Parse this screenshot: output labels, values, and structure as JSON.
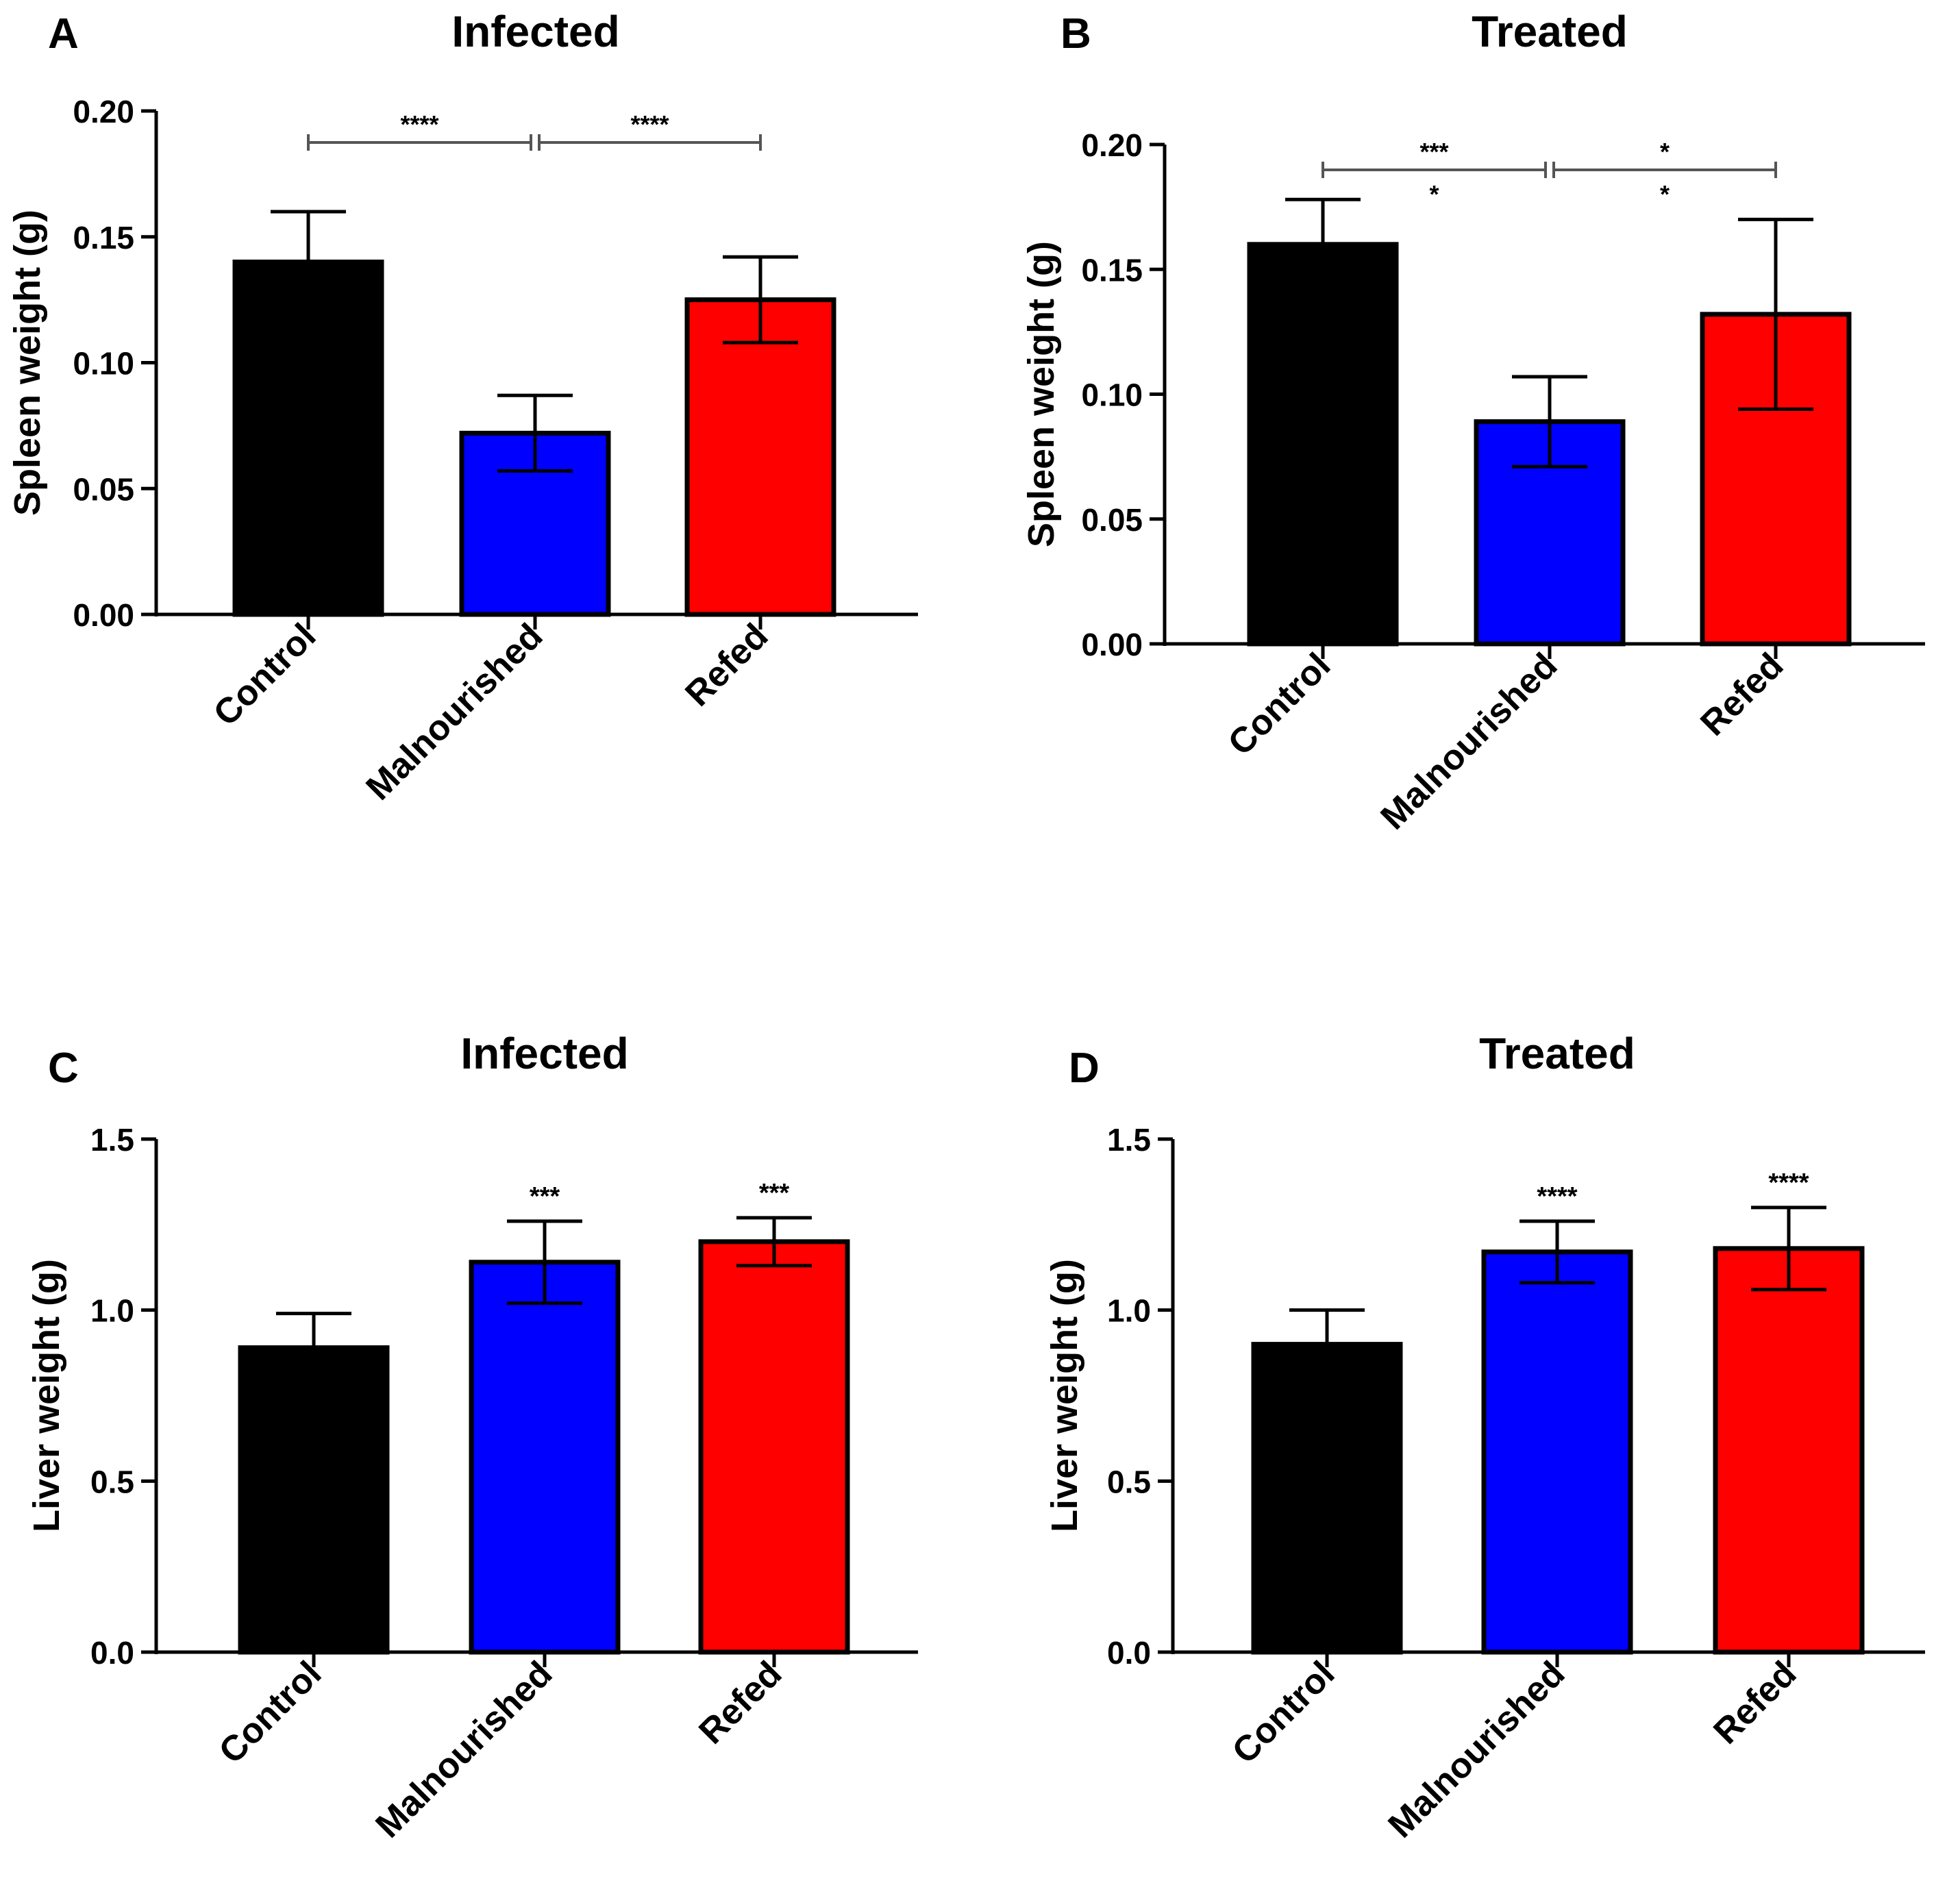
{
  "figure": {
    "background": "#ffffff",
    "axis_color": "#000000",
    "bracket_color": "#555555"
  },
  "chart_data": [
    {
      "panel": "A",
      "type": "bar",
      "title": "Infected",
      "ylabel": "Spleen weight (g)",
      "xlabel": "",
      "categories": [
        "Control",
        "Malnourished",
        "Refed"
      ],
      "values": [
        0.14,
        0.072,
        0.125
      ],
      "errors": [
        0.02,
        0.015,
        0.017
      ],
      "colors": [
        "#000000",
        "#0000ff",
        "#ff0000"
      ],
      "ylim": [
        0,
        0.2
      ],
      "yticks": [
        0.0,
        0.05,
        0.1,
        0.15,
        0.2
      ],
      "ytick_labels": [
        "0.00",
        "0.05",
        "0.10",
        "0.15",
        "0.20"
      ],
      "brackets": [
        {
          "from": 0,
          "to": 1,
          "labels": [
            "****"
          ]
        },
        {
          "from": 1,
          "to": 2,
          "labels": [
            "****"
          ]
        }
      ],
      "bar_annotations": [
        "",
        "",
        ""
      ]
    },
    {
      "panel": "B",
      "type": "bar",
      "title": "Treated",
      "ylabel": "Spleen weight (g)",
      "xlabel": "",
      "categories": [
        "Control",
        "Malnourished",
        "Refed"
      ],
      "values": [
        0.16,
        0.089,
        0.132
      ],
      "errors": [
        0.018,
        0.018,
        0.038
      ],
      "colors": [
        "#000000",
        "#0000ff",
        "#ff0000"
      ],
      "ylim": [
        0,
        0.2
      ],
      "yticks": [
        0.0,
        0.05,
        0.1,
        0.15,
        0.2
      ],
      "ytick_labels": [
        "0.00",
        "0.05",
        "0.10",
        "0.15",
        "0.20"
      ],
      "brackets": [
        {
          "from": 0,
          "to": 1,
          "labels": [
            "***",
            "*"
          ]
        },
        {
          "from": 1,
          "to": 2,
          "labels": [
            "*",
            "*"
          ]
        }
      ],
      "bar_annotations": [
        "",
        "",
        ""
      ]
    },
    {
      "panel": "C",
      "type": "bar",
      "title": "Infected",
      "ylabel": "Liver weight (g)",
      "xlabel": "",
      "categories": [
        "Control",
        "Malnourished",
        "Refed"
      ],
      "values": [
        0.89,
        1.14,
        1.2
      ],
      "errors": [
        0.1,
        0.12,
        0.07
      ],
      "colors": [
        "#000000",
        "#0000ff",
        "#ff0000"
      ],
      "ylim": [
        0,
        1.5
      ],
      "yticks": [
        0.0,
        0.5,
        1.0,
        1.5
      ],
      "ytick_labels": [
        "0.0",
        "0.5",
        "1.0",
        "1.5"
      ],
      "brackets": [],
      "bar_annotations": [
        "",
        "***",
        "***"
      ]
    },
    {
      "panel": "D",
      "type": "bar",
      "title": "Treated",
      "ylabel": "Liver weight (g)",
      "xlabel": "",
      "categories": [
        "Control",
        "Malnourished",
        "Refed"
      ],
      "values": [
        0.9,
        1.17,
        1.18
      ],
      "errors": [
        0.1,
        0.09,
        0.12
      ],
      "colors": [
        "#000000",
        "#0000ff",
        "#ff0000"
      ],
      "ylim": [
        0,
        1.5
      ],
      "yticks": [
        0.0,
        0.5,
        1.0,
        1.5
      ],
      "ytick_labels": [
        "0.0",
        "0.5",
        "1.0",
        "1.5"
      ],
      "brackets": [],
      "bar_annotations": [
        "",
        "****",
        "****"
      ]
    }
  ]
}
